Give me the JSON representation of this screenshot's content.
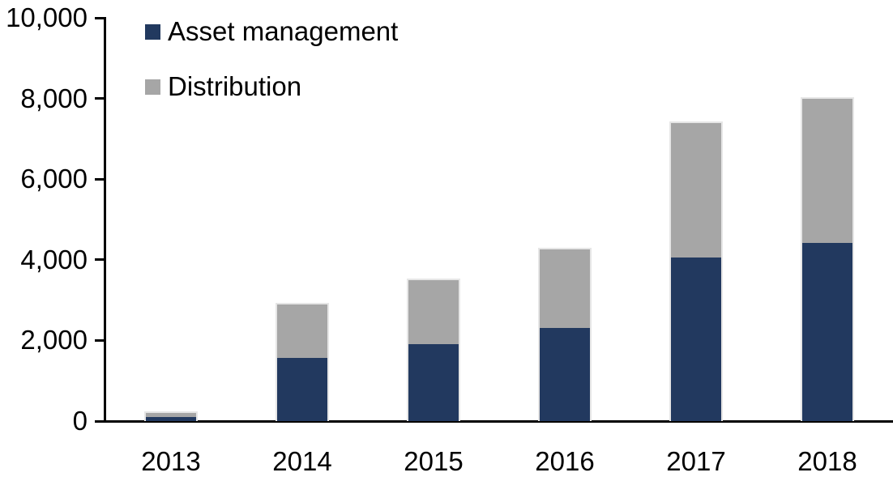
{
  "chart_data": {
    "type": "bar",
    "stacked": true,
    "title": "",
    "xlabel": "",
    "ylabel": "",
    "categories": [
      "2013",
      "2014",
      "2015",
      "2016",
      "2017",
      "2018"
    ],
    "series": [
      {
        "name": "Asset management",
        "color": "#22395F",
        "values": [
          100,
          1560,
          1910,
          2310,
          4050,
          4420
        ]
      },
      {
        "name": "Distribution",
        "color": "#A6A6A6",
        "values": [
          100,
          1330,
          1590,
          1940,
          3350,
          3580
        ]
      }
    ],
    "stack_totals": [
      200,
      2890,
      3500,
      4250,
      7400,
      8000
    ],
    "ylim": [
      0,
      10000
    ],
    "ytick_step": 2000,
    "ytick_labels": [
      "0",
      "2,000",
      "4,000",
      "6,000",
      "8,000",
      "10,000"
    ],
    "grid": false,
    "legend_position": "top-left",
    "axis_color": "#000000",
    "text_color": "#000000",
    "bar_border_color": "#E6E6E6",
    "background_color": "#FFFFFF"
  }
}
